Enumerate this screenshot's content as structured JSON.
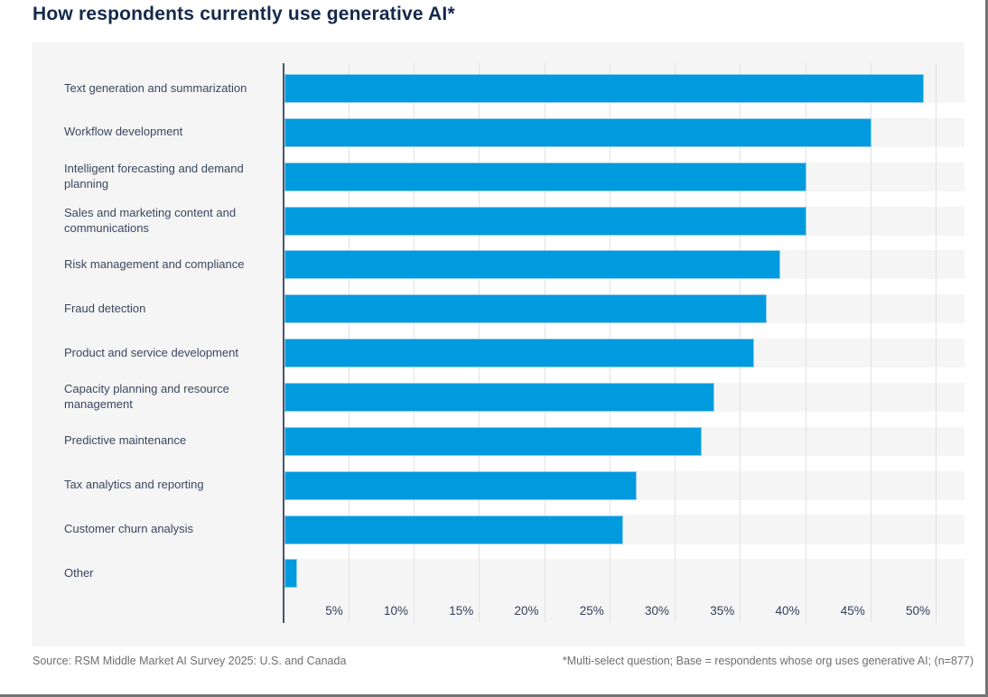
{
  "title": "How respondents currently use generative AI*",
  "footer": {
    "source": "Source: RSM Middle Market AI Survey 2025: U.S. and Canada",
    "note": "*Multi-select question; Base = respondents whose org uses generative AI; (n=877)"
  },
  "colors": {
    "bar": "#009ade",
    "bar_edge": "#8fccec",
    "title": "#13294b",
    "label_text": "#3a4760",
    "tick_text": "#31405c",
    "footer_text": "#6e6e6e",
    "panel_bg": "#f5f5f5",
    "gridline": "#e2e2e5",
    "axis_line": "#49556d"
  },
  "chart_data": {
    "type": "bar",
    "orientation": "horizontal",
    "title": "How respondents currently use generative AI*",
    "categories": [
      "Text generation and summarization",
      "Workflow development",
      "Intelligent forecasting and demand planning",
      "Sales and marketing content and communications",
      "Risk management and compliance",
      "Fraud detection",
      "Product and service development",
      "Capacity planning and resource management",
      "Predictive maintenance",
      "Tax analytics and reporting",
      "Customer churn analysis",
      "Other"
    ],
    "values": [
      49,
      45,
      40,
      40,
      38,
      37,
      36,
      33,
      32,
      27,
      26,
      1
    ],
    "unit": "%",
    "x_tick_values": [
      5,
      10,
      15,
      20,
      25,
      30,
      35,
      40,
      45,
      50
    ],
    "x_tick_labels": [
      "5%",
      "10%",
      "15%",
      "20%",
      "25%",
      "30%",
      "35%",
      "40%",
      "45%",
      "50%"
    ],
    "xlim": [
      0,
      52
    ],
    "grid": true,
    "legend": false
  }
}
